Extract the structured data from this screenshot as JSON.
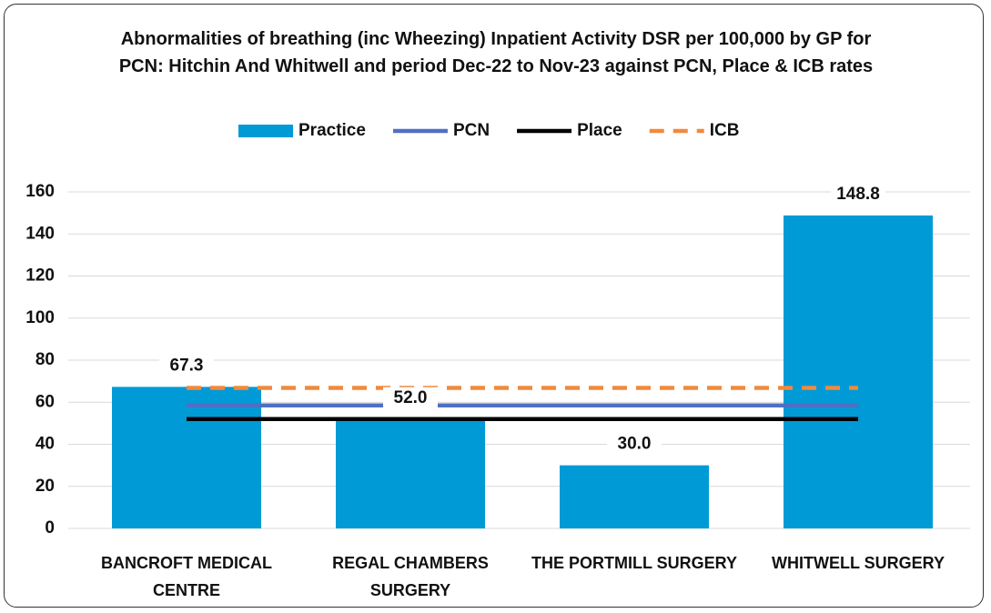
{
  "chart_data": {
    "type": "bar",
    "title": "Abnormalities of breathing (inc Wheezing) Inpatient Activity DSR per 100,000 by GP for PCN: Hitchin And Whitwell and period Dec-22 to Nov-23 against PCN, Place & ICB rates",
    "categories": [
      "BANCROFT MEDICAL CENTRE",
      "REGAL CHAMBERS SURGERY",
      "THE PORTMILL SURGERY",
      "WHITWELL SURGERY"
    ],
    "series": [
      {
        "name": "Practice",
        "type": "bar",
        "color": "#009ad6",
        "values": [
          67.3,
          52.0,
          30.0,
          148.8
        ],
        "value_labels": [
          "67.3",
          "52.0",
          "30.0",
          "148.8"
        ]
      },
      {
        "name": "PCN",
        "type": "line",
        "color": "#4f6fc4",
        "values": [
          58.5,
          58.5,
          58.5,
          58.5
        ]
      },
      {
        "name": "Place",
        "type": "line",
        "color": "#000000",
        "values": [
          52.0,
          52.0,
          52.0,
          52.0
        ]
      },
      {
        "name": "ICB",
        "type": "line",
        "color": "#f08a3c",
        "dashed": true,
        "values": [
          66.8,
          66.8,
          66.8,
          66.8
        ]
      }
    ],
    "ylim": [
      0,
      160
    ],
    "yticks": [
      0,
      20,
      40,
      60,
      80,
      100,
      120,
      140,
      160
    ],
    "grid": true,
    "legend": "top"
  }
}
